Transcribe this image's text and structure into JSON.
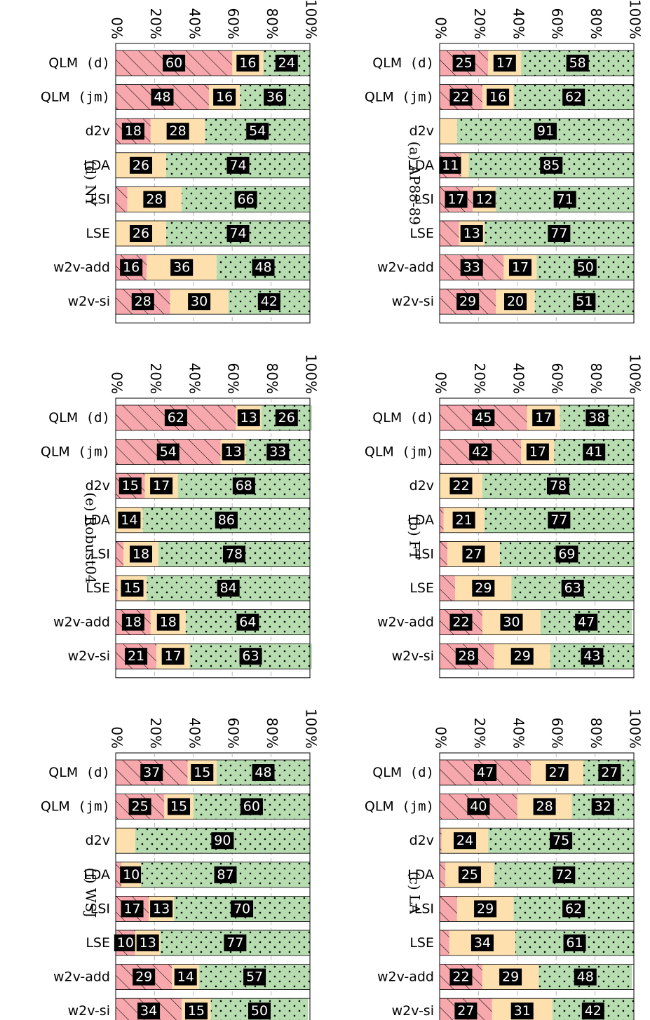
{
  "colors": {
    "red": "#f7a8ad",
    "yellow": "#fde0ae",
    "green": "#b6dcb0",
    "label_bg": "#000000",
    "label_text": "#ffffff"
  },
  "chart_data": [
    {
      "type": "bar",
      "stacked": true,
      "title": "(a) AP88-89",
      "categories": [
        {
          "name": "QLM",
          "suffix": " (d)"
        },
        {
          "name": "QLM",
          "suffix": " (jm)"
        },
        {
          "name": "d2v",
          "suffix": ""
        },
        {
          "name": "LDA",
          "suffix": ""
        },
        {
          "name": "LSI",
          "suffix": ""
        },
        {
          "name": "LSE",
          "suffix": ""
        },
        {
          "name": "w2v-add",
          "suffix": ""
        },
        {
          "name": "w2v-si",
          "suffix": ""
        }
      ],
      "ticks": [
        "0%",
        "20%",
        "40%",
        "60%",
        "80%",
        "100%"
      ],
      "ylim": [
        0,
        100
      ],
      "grid": true,
      "series": [
        {
          "values": [
            25,
            22,
            0,
            11,
            17,
            10,
            33,
            29
          ],
          "labels": [
            25,
            22,
            null,
            11,
            17,
            null,
            33,
            29
          ]
        },
        {
          "values": [
            17,
            16,
            9,
            4,
            12,
            13,
            17,
            20
          ],
          "labels": [
            17,
            16,
            null,
            null,
            12,
            13,
            17,
            20
          ]
        },
        {
          "values": [
            58,
            62,
            91,
            85,
            71,
            77,
            50,
            51
          ],
          "labels": [
            58,
            62,
            91,
            85,
            71,
            77,
            50,
            51
          ]
        }
      ]
    },
    {
      "type": "bar",
      "stacked": true,
      "title": "(b) FT",
      "categories": [
        {
          "name": "QLM",
          "suffix": " (d)"
        },
        {
          "name": "QLM",
          "suffix": " (jm)"
        },
        {
          "name": "d2v",
          "suffix": ""
        },
        {
          "name": "LDA",
          "suffix": ""
        },
        {
          "name": "LSI",
          "suffix": ""
        },
        {
          "name": "LSE",
          "suffix": ""
        },
        {
          "name": "w2v-add",
          "suffix": ""
        },
        {
          "name": "w2v-si",
          "suffix": ""
        }
      ],
      "ticks": [
        "0%",
        "20%",
        "40%",
        "60%",
        "80%",
        "100%"
      ],
      "ylim": [
        0,
        100
      ],
      "grid": true,
      "series": [
        {
          "values": [
            45,
            42,
            0,
            2,
            4,
            8,
            22,
            28
          ],
          "labels": [
            45,
            42,
            null,
            null,
            null,
            null,
            22,
            28
          ]
        },
        {
          "values": [
            17,
            17,
            22,
            21,
            27,
            29,
            30,
            29
          ],
          "labels": [
            17,
            17,
            22,
            21,
            27,
            29,
            30,
            29
          ]
        },
        {
          "values": [
            38,
            41,
            78,
            77,
            69,
            63,
            47,
            43
          ],
          "labels": [
            38,
            41,
            78,
            77,
            69,
            63,
            47,
            43
          ]
        }
      ]
    },
    {
      "type": "bar",
      "stacked": true,
      "title": "(c) LA",
      "categories": [
        {
          "name": "QLM",
          "suffix": " (d)"
        },
        {
          "name": "QLM",
          "suffix": " (jm)"
        },
        {
          "name": "d2v",
          "suffix": ""
        },
        {
          "name": "LDA",
          "suffix": ""
        },
        {
          "name": "LSI",
          "suffix": ""
        },
        {
          "name": "LSE",
          "suffix": ""
        },
        {
          "name": "w2v-add",
          "suffix": ""
        },
        {
          "name": "w2v-si",
          "suffix": ""
        }
      ],
      "ticks": [
        "0%",
        "20%",
        "40%",
        "60%",
        "80%",
        "100%"
      ],
      "ylim": [
        0,
        100
      ],
      "grid": true,
      "series": [
        {
          "values": [
            47,
            40,
            1,
            3,
            9,
            5,
            22,
            27
          ],
          "labels": [
            47,
            40,
            null,
            null,
            null,
            null,
            22,
            27
          ]
        },
        {
          "values": [
            27,
            28,
            24,
            25,
            29,
            34,
            29,
            31
          ],
          "labels": [
            27,
            28,
            24,
            25,
            29,
            34,
            29,
            31
          ]
        },
        {
          "values": [
            27,
            32,
            75,
            72,
            62,
            61,
            48,
            42
          ],
          "labels": [
            27,
            32,
            75,
            72,
            62,
            61,
            48,
            42
          ]
        }
      ]
    },
    {
      "type": "bar",
      "stacked": true,
      "title": "(d) NY",
      "categories": [
        {
          "name": "QLM",
          "suffix": " (d)"
        },
        {
          "name": "QLM",
          "suffix": " (jm)"
        },
        {
          "name": "d2v",
          "suffix": ""
        },
        {
          "name": "LDA",
          "suffix": ""
        },
        {
          "name": "LSI",
          "suffix": ""
        },
        {
          "name": "LSE",
          "suffix": ""
        },
        {
          "name": "w2v-add",
          "suffix": ""
        },
        {
          "name": "w2v-si",
          "suffix": ""
        }
      ],
      "ticks": [
        "0%",
        "20%",
        "40%",
        "60%",
        "80%",
        "100%"
      ],
      "ylim": [
        0,
        100
      ],
      "grid": true,
      "series": [
        {
          "values": [
            60,
            48,
            18,
            0,
            6,
            0,
            16,
            28
          ],
          "labels": [
            60,
            48,
            18,
            null,
            null,
            null,
            16,
            28
          ]
        },
        {
          "values": [
            16,
            16,
            28,
            26,
            28,
            26,
            36,
            30
          ],
          "labels": [
            16,
            16,
            28,
            26,
            28,
            26,
            36,
            30
          ]
        },
        {
          "values": [
            24,
            36,
            54,
            74,
            66,
            74,
            48,
            42
          ],
          "labels": [
            24,
            36,
            54,
            74,
            66,
            74,
            48,
            42
          ]
        }
      ]
    },
    {
      "type": "bar",
      "stacked": true,
      "title": "(e) Robust04",
      "categories": [
        {
          "name": "QLM",
          "suffix": " (d)"
        },
        {
          "name": "QLM",
          "suffix": " (jm)"
        },
        {
          "name": "d2v",
          "suffix": ""
        },
        {
          "name": "LDA",
          "suffix": ""
        },
        {
          "name": "LSI",
          "suffix": ""
        },
        {
          "name": "LSE",
          "suffix": ""
        },
        {
          "name": "w2v-add",
          "suffix": ""
        },
        {
          "name": "w2v-si",
          "suffix": ""
        }
      ],
      "ticks": [
        "0%",
        "20%",
        "40%",
        "60%",
        "80%",
        "100%"
      ],
      "ylim": [
        0,
        100
      ],
      "grid": true,
      "series": [
        {
          "values": [
            62,
            54,
            15,
            0,
            4,
            1,
            18,
            21
          ],
          "labels": [
            62,
            54,
            15,
            null,
            null,
            null,
            18,
            21
          ]
        },
        {
          "values": [
            13,
            13,
            17,
            14,
            18,
            15,
            18,
            17
          ],
          "labels": [
            13,
            13,
            17,
            14,
            18,
            15,
            18,
            17
          ]
        },
        {
          "values": [
            26,
            33,
            68,
            86,
            78,
            84,
            64,
            63
          ],
          "labels": [
            26,
            33,
            68,
            86,
            78,
            84,
            64,
            63
          ]
        }
      ]
    },
    {
      "type": "bar",
      "stacked": true,
      "title": "(f) WSJ",
      "categories": [
        {
          "name": "QLM",
          "suffix": " (d)"
        },
        {
          "name": "QLM",
          "suffix": " (jm)"
        },
        {
          "name": "d2v",
          "suffix": ""
        },
        {
          "name": "LDA",
          "suffix": ""
        },
        {
          "name": "LSI",
          "suffix": ""
        },
        {
          "name": "LSE",
          "suffix": ""
        },
        {
          "name": "w2v-add",
          "suffix": ""
        },
        {
          "name": "w2v-si",
          "suffix": ""
        }
      ],
      "ticks": [
        "0%",
        "20%",
        "40%",
        "60%",
        "80%",
        "100%"
      ],
      "ylim": [
        0,
        100
      ],
      "grid": true,
      "series": [
        {
          "values": [
            37,
            25,
            0,
            3,
            17,
            10,
            29,
            34
          ],
          "labels": [
            37,
            25,
            null,
            null,
            17,
            10,
            29,
            34
          ]
        },
        {
          "values": [
            15,
            15,
            10,
            10,
            13,
            13,
            14,
            15
          ],
          "labels": [
            15,
            15,
            null,
            10,
            13,
            13,
            14,
            15
          ]
        },
        {
          "values": [
            48,
            60,
            90,
            87,
            70,
            77,
            57,
            50
          ],
          "labels": [
            48,
            60,
            90,
            87,
            70,
            77,
            57,
            50
          ]
        }
      ]
    }
  ]
}
